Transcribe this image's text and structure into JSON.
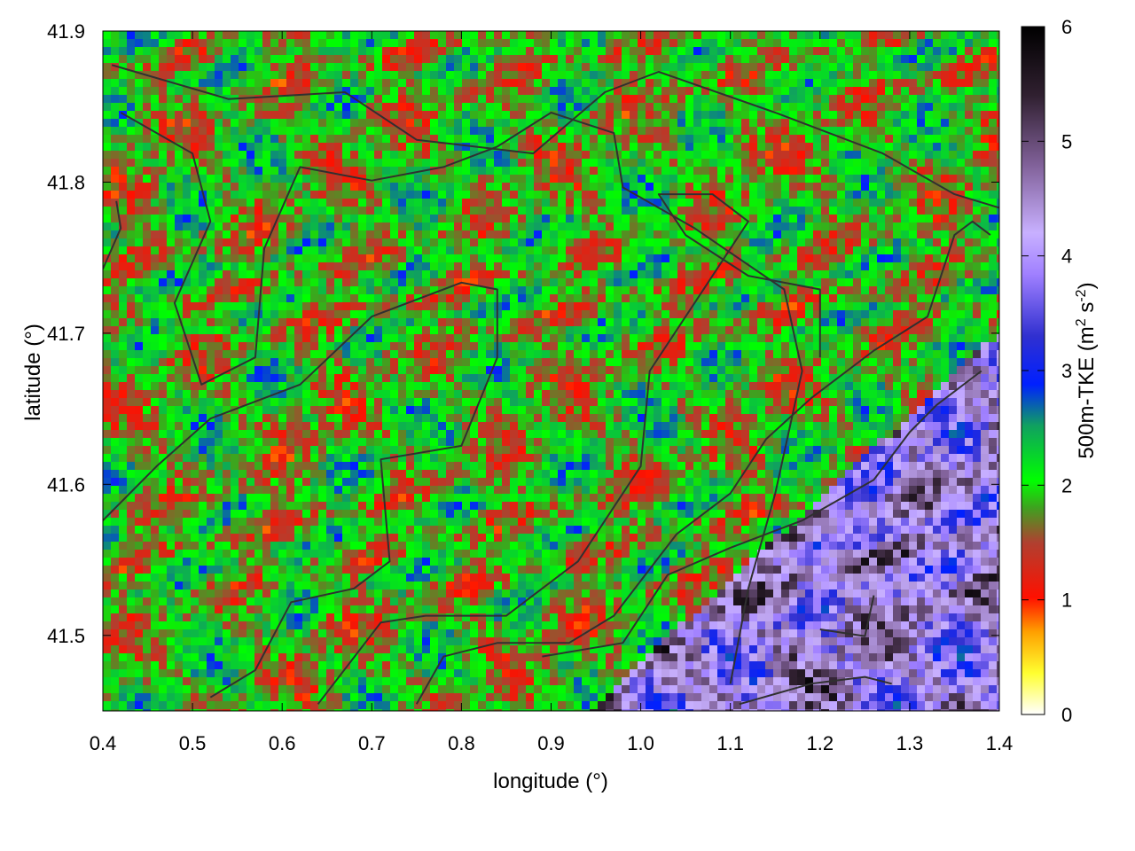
{
  "chart_data": {
    "type": "heatmap",
    "xlabel": "longitude (°)",
    "ylabel": "latitude (°)",
    "xlim": [
      0.4,
      1.4
    ],
    "ylim": [
      41.45,
      41.9
    ],
    "xticks": [
      "0.4",
      "0.5",
      "0.6",
      "0.7",
      "0.8",
      "0.9",
      "1.0",
      "1.1",
      "1.2",
      "1.3",
      "1.4"
    ],
    "yticks": [
      "41.5",
      "41.6",
      "41.7",
      "41.8",
      "41.9"
    ],
    "colorbar": {
      "label_main": "500m-TKE (m",
      "sup1": "2",
      "label_mid": " s",
      "sup2": "-2",
      "label_end": ")",
      "range": [
        0,
        6
      ],
      "ticks": [
        "0",
        "1",
        "2",
        "3",
        "4",
        "5",
        "6"
      ],
      "colors": [
        "#ffffff",
        "#ffff00",
        "#ff8000",
        "#ff0000",
        "#b03020",
        "#20c020",
        "#00ff00",
        "#0030ff",
        "#2020d0",
        "#a080ff",
        "#c0a8ff",
        "#805090",
        "#302030",
        "#000000"
      ]
    },
    "regions": [
      {
        "name": "north-west",
        "dominant": "red-green-blue mix",
        "tke_range": [
          0.8,
          3.0
        ]
      },
      {
        "name": "south-east",
        "dominant": "blue-violet-black",
        "tke_range": [
          2.5,
          6.0
        ]
      }
    ],
    "contour_color": "#303030"
  }
}
